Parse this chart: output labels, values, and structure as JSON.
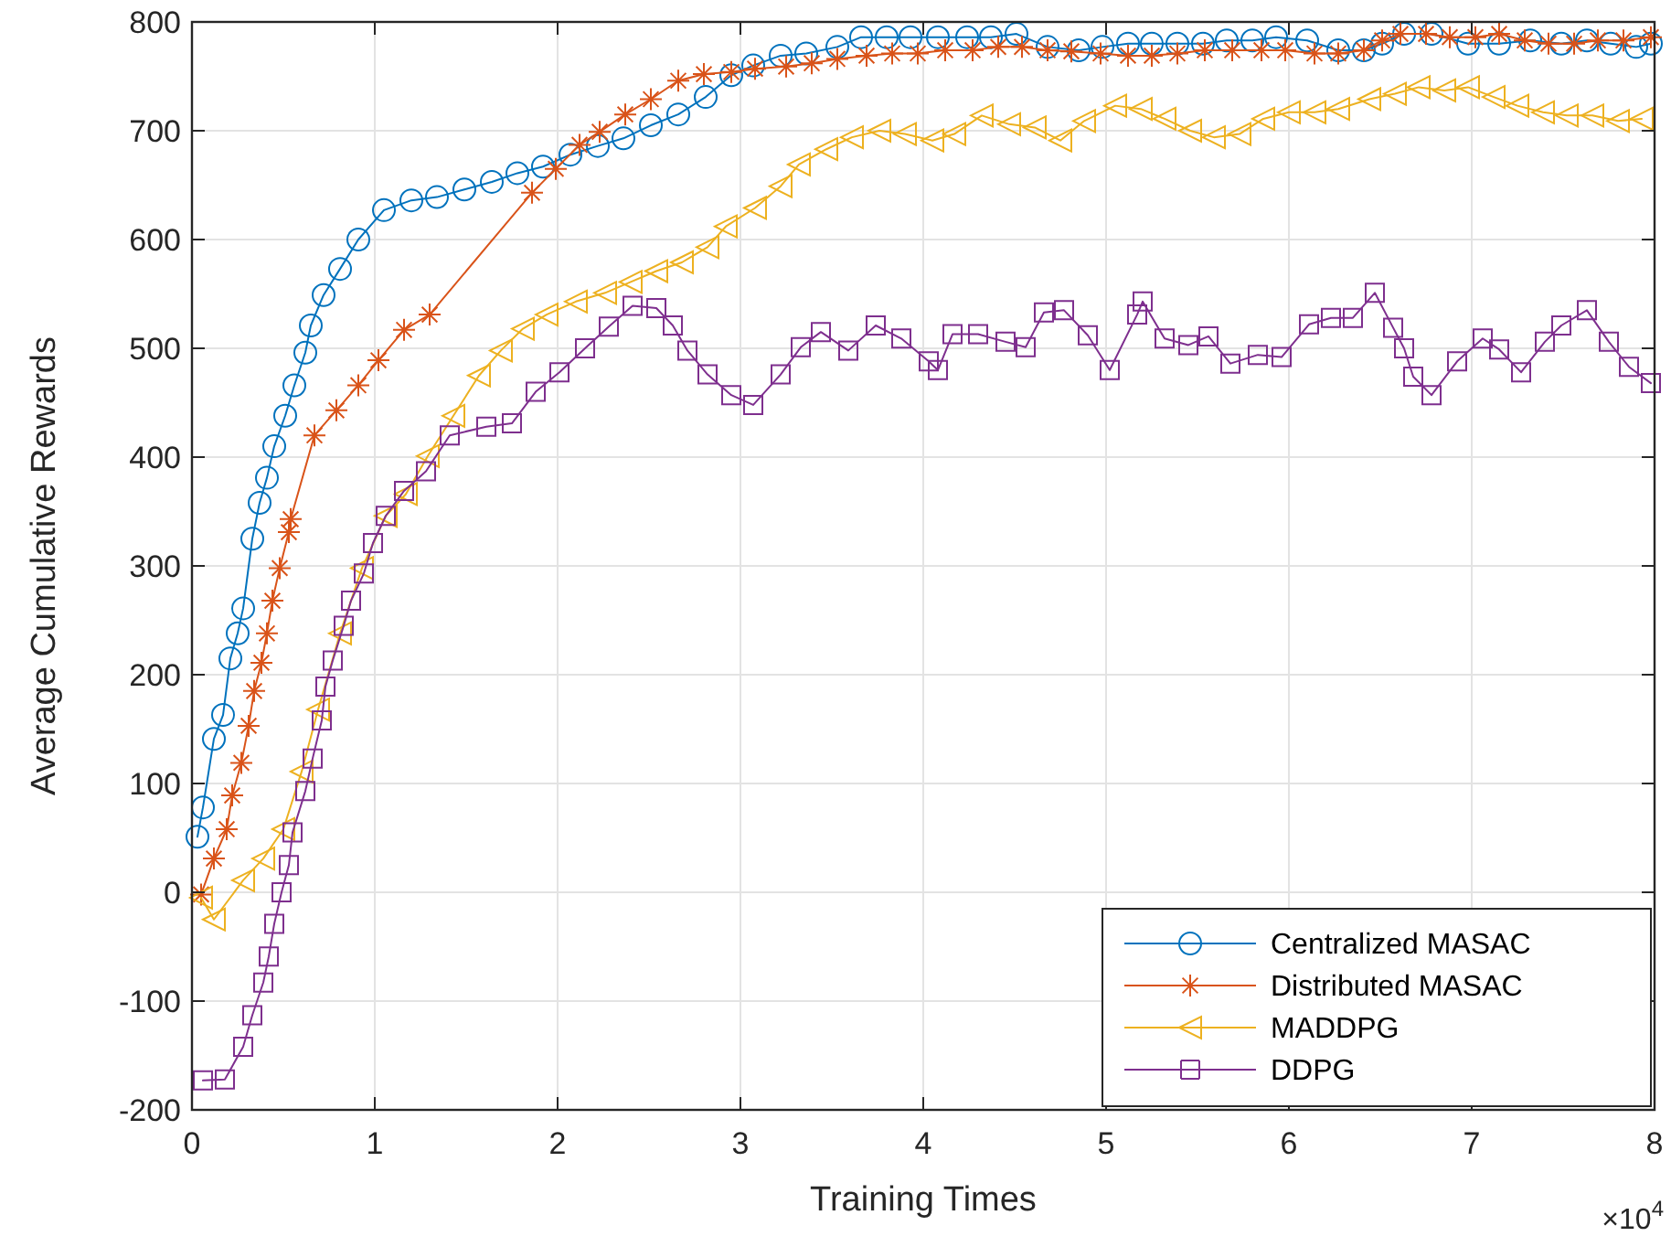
{
  "chart_data": {
    "type": "line",
    "xlabel": "Training Times",
    "ylabel": "Average Cumulative Rewards",
    "annotations": [
      "×10$^{4}$"
    ],
    "xlim": [
      0,
      8
    ],
    "xticks": [
      0,
      1,
      2,
      3,
      4,
      5,
      6,
      7,
      8
    ],
    "ylim": [
      -200,
      800
    ],
    "yticks": [
      -200,
      -100,
      0,
      100,
      200,
      300,
      400,
      500,
      600,
      700,
      800
    ],
    "grid": true,
    "legend": "bottom right",
    "series": [
      {
        "name": "Centralized MASAC",
        "color": "#0072bd",
        "marker": "circle",
        "x": [
          0.03,
          0.06,
          0.12,
          0.17,
          0.21,
          0.25,
          0.28,
          0.33,
          0.37,
          0.41,
          0.45,
          0.51,
          0.56,
          0.62,
          0.65,
          0.72,
          0.81,
          0.91,
          1.05,
          1.2,
          1.34,
          1.49,
          1.64,
          1.78,
          1.92,
          2.07,
          2.22,
          2.36,
          2.51,
          2.66,
          2.81,
          2.95,
          3.07,
          3.22,
          3.36,
          3.53,
          3.66,
          3.8,
          3.93,
          4.08,
          4.24,
          4.37,
          4.51,
          4.68,
          4.85,
          4.98,
          5.12,
          5.25,
          5.39,
          5.53,
          5.66,
          5.8,
          5.93,
          6.1,
          6.27,
          6.41,
          6.51,
          6.63,
          6.78,
          6.98,
          7.15,
          7.32,
          7.49,
          7.63,
          7.76,
          7.9,
          7.98
        ],
        "values": [
          51,
          78,
          141,
          163,
          215,
          238,
          261,
          325,
          358,
          381,
          410,
          438,
          466,
          496,
          521,
          549,
          573,
          600,
          627,
          636,
          639,
          646,
          653,
          661,
          667,
          678,
          686,
          693,
          705,
          715,
          731,
          751,
          760,
          769,
          771,
          777,
          786,
          786,
          786,
          786,
          786,
          786,
          789,
          777,
          774,
          777,
          780,
          780,
          780,
          780,
          783,
          783,
          786,
          783,
          774,
          774,
          780,
          789,
          789,
          780,
          780,
          783,
          780,
          783,
          780,
          777,
          780
        ]
      },
      {
        "name": "Distributed MASAC",
        "color": "#d95319",
        "marker": "cross",
        "x": [
          0.05,
          0.12,
          0.19,
          0.22,
          0.27,
          0.31,
          0.34,
          0.38,
          0.41,
          0.44,
          0.48,
          0.53,
          0.54,
          0.67,
          0.79,
          0.91,
          1.02,
          1.16,
          1.3,
          1.86,
          1.99,
          2.12,
          2.23,
          2.37,
          2.51,
          2.66,
          2.8,
          2.95,
          3.08,
          3.25,
          3.39,
          3.53,
          3.69,
          3.83,
          3.97,
          4.12,
          4.27,
          4.41,
          4.54,
          4.68,
          4.81,
          4.97,
          5.12,
          5.25,
          5.39,
          5.54,
          5.69,
          5.85,
          5.98,
          6.14,
          6.27,
          6.41,
          6.51,
          6.61,
          6.75,
          6.88,
          7.02,
          7.15,
          7.29,
          7.42,
          7.56,
          7.69,
          7.83,
          7.98
        ],
        "values": [
          -2,
          31,
          58,
          89,
          119,
          153,
          185,
          211,
          238,
          268,
          298,
          331,
          343,
          420,
          443,
          466,
          489,
          517,
          531,
          643,
          665,
          687,
          699,
          715,
          729,
          746,
          752,
          754,
          757,
          759,
          762,
          766,
          769,
          771,
          771,
          774,
          774,
          777,
          777,
          774,
          773,
          771,
          769,
          769,
          771,
          774,
          774,
          774,
          774,
          771,
          771,
          774,
          783,
          789,
          789,
          786,
          786,
          789,
          783,
          780,
          780,
          783,
          783,
          786
        ]
      },
      {
        "name": "MADDPG",
        "color": "#edb120",
        "marker": "triangle",
        "x": [
          0.05,
          0.12,
          0.28,
          0.39,
          0.5,
          0.6,
          0.69,
          0.81,
          0.93,
          1.06,
          1.17,
          1.29,
          1.43,
          1.57,
          1.69,
          1.81,
          1.94,
          2.1,
          2.26,
          2.4,
          2.54,
          2.68,
          2.82,
          2.92,
          3.08,
          3.22,
          3.32,
          3.47,
          3.61,
          3.76,
          3.9,
          4.05,
          4.17,
          4.32,
          4.47,
          4.61,
          4.75,
          4.88,
          5.05,
          5.19,
          5.32,
          5.46,
          5.59,
          5.73,
          5.86,
          6.0,
          6.14,
          6.27,
          6.44,
          6.58,
          6.71,
          6.85,
          6.98,
          7.12,
          7.25,
          7.39,
          7.52,
          7.66,
          7.8,
          7.93
        ],
        "values": [
          -5,
          -25,
          11,
          31,
          58,
          111,
          168,
          238,
          298,
          346,
          366,
          401,
          438,
          475,
          498,
          518,
          531,
          543,
          551,
          561,
          571,
          579,
          593,
          612,
          629,
          649,
          669,
          683,
          694,
          700,
          697,
          691,
          697,
          714,
          706,
          703,
          691,
          709,
          723,
          720,
          711,
          700,
          694,
          697,
          711,
          717,
          717,
          720,
          729,
          734,
          740,
          737,
          740,
          731,
          723,
          717,
          714,
          714,
          709,
          711
        ]
      },
      {
        "name": "DDPG",
        "color": "#7e2f8e",
        "marker": "square",
        "x": [
          0.06,
          0.18,
          0.28,
          0.33,
          0.39,
          0.42,
          0.45,
          0.49,
          0.53,
          0.55,
          0.62,
          0.66,
          0.71,
          0.73,
          0.77,
          0.83,
          0.87,
          0.94,
          0.99,
          1.06,
          1.16,
          1.28,
          1.41,
          1.61,
          1.75,
          1.88,
          2.01,
          2.15,
          2.28,
          2.41,
          2.54,
          2.63,
          2.71,
          2.82,
          2.95,
          3.07,
          3.22,
          3.33,
          3.44,
          3.59,
          3.74,
          3.88,
          4.03,
          4.08,
          4.16,
          4.3,
          4.45,
          4.56,
          4.66,
          4.77,
          4.9,
          5.02,
          5.17,
          5.2,
          5.32,
          5.45,
          5.56,
          5.68,
          5.83,
          5.96,
          6.11,
          6.23,
          6.35,
          6.47,
          6.57,
          6.63,
          6.68,
          6.78,
          6.92,
          7.06,
          7.15,
          7.27,
          7.4,
          7.49,
          7.63,
          7.75,
          7.86,
          7.98
        ],
        "values": [
          -173,
          -172,
          -142,
          -113,
          -83,
          -59,
          -29,
          0,
          25,
          55,
          93,
          123,
          158,
          189,
          213,
          245,
          268,
          293,
          321,
          346,
          369,
          387,
          420,
          428,
          431,
          460,
          478,
          500,
          520,
          539,
          537,
          521,
          498,
          476,
          457,
          448,
          476,
          501,
          515,
          498,
          521,
          509,
          488,
          480,
          513,
          513,
          506,
          501,
          533,
          535,
          512,
          480,
          531,
          543,
          509,
          503,
          511,
          486,
          494,
          492,
          522,
          528,
          528,
          551,
          519,
          500,
          474,
          457,
          488,
          509,
          499,
          478,
          506,
          521,
          535,
          506,
          483,
          468
        ]
      }
    ]
  }
}
